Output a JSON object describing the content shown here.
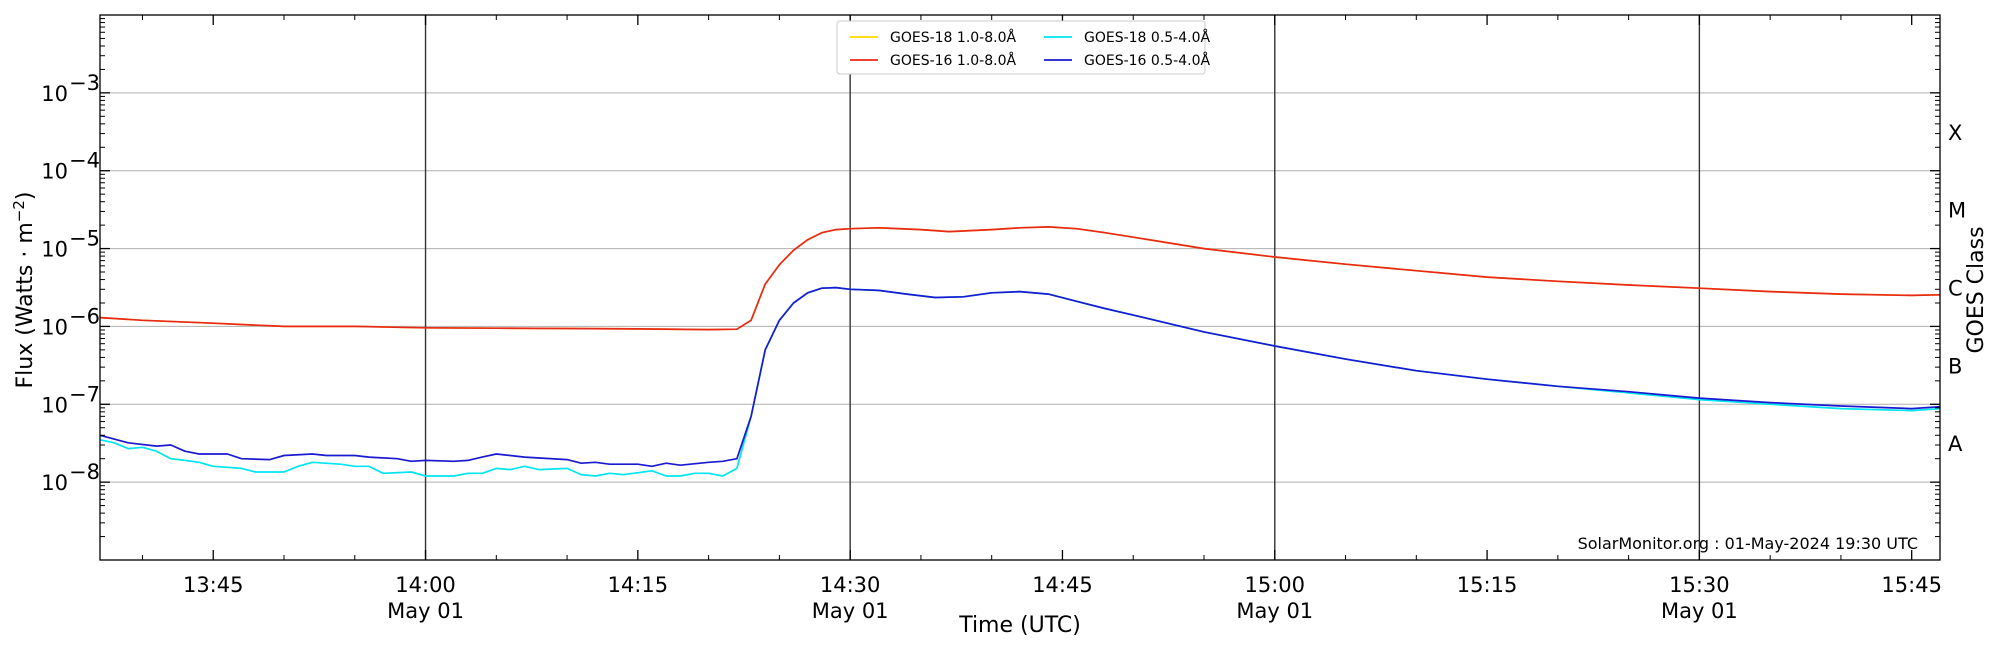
{
  "chart_data": {
    "type": "line",
    "xlabel": "Time (UTC)",
    "ylabel": "Flux (Watts · m",
    "ylabel_sup": "−2",
    "ylabel_close": ")",
    "y2label": "GOES Class",
    "yscale": "log",
    "xlim": [
      "13:37",
      "15:47"
    ],
    "ylim": [
      1e-09,
      0.01
    ],
    "grid": true,
    "legend_position": "top-center",
    "credit": "SolarMonitor.org : 01-May-2024 19:30 UTC",
    "x_ticks": [
      {
        "t": "13:45",
        "label": "13:45",
        "sub": ""
      },
      {
        "t": "14:00",
        "label": "14:00",
        "sub": "May 01"
      },
      {
        "t": "14:15",
        "label": "14:15",
        "sub": ""
      },
      {
        "t": "14:30",
        "label": "14:30",
        "sub": "May 01"
      },
      {
        "t": "14:45",
        "label": "14:45",
        "sub": ""
      },
      {
        "t": "15:00",
        "label": "15:00",
        "sub": "May 01"
      },
      {
        "t": "15:15",
        "label": "15:15",
        "sub": ""
      },
      {
        "t": "15:30",
        "label": "15:30",
        "sub": "May 01"
      },
      {
        "t": "15:45",
        "label": "15:45",
        "sub": ""
      }
    ],
    "vertical_lines": [
      "14:00",
      "14:30",
      "15:00",
      "15:30"
    ],
    "y_ticks": [
      {
        "exp": -8,
        "label": "10",
        "sup": "−8"
      },
      {
        "exp": -7,
        "label": "10",
        "sup": "−7"
      },
      {
        "exp": -6,
        "label": "10",
        "sup": "−6"
      },
      {
        "exp": -5,
        "label": "10",
        "sup": "−5"
      },
      {
        "exp": -4,
        "label": "10",
        "sup": "−4"
      },
      {
        "exp": -3,
        "label": "10",
        "sup": "−3"
      }
    ],
    "goes_classes": [
      {
        "label": "A",
        "exp": -7.5
      },
      {
        "label": "B",
        "exp": -6.5
      },
      {
        "label": "C",
        "exp": -5.5
      },
      {
        "label": "M",
        "exp": -4.5
      },
      {
        "label": "X",
        "exp": -3.5
      }
    ],
    "series": [
      {
        "name": "GOES-18 1.0-8.0Å",
        "color": "#ffd700",
        "points": [
          [
            "13:37",
            1.3e-06
          ],
          [
            "13:40",
            1.2e-06
          ],
          [
            "13:45",
            1.1e-06
          ],
          [
            "13:50",
            1e-06
          ],
          [
            "13:55",
            1e-06
          ],
          [
            "14:00",
            9.6e-07
          ],
          [
            "14:05",
            9.5e-07
          ],
          [
            "14:10",
            9.4e-07
          ],
          [
            "14:15",
            9.3e-07
          ],
          [
            "14:20",
            9.1e-07
          ],
          [
            "14:22",
            9.2e-07
          ],
          [
            "14:23",
            1.2e-06
          ],
          [
            "14:24",
            3.5e-06
          ],
          [
            "14:25",
            6.2e-06
          ],
          [
            "14:26",
            9.5e-06
          ],
          [
            "14:27",
            1.3e-05
          ],
          [
            "14:28",
            1.6e-05
          ],
          [
            "14:29",
            1.75e-05
          ],
          [
            "14:30",
            1.8e-05
          ],
          [
            "14:32",
            1.85e-05
          ],
          [
            "14:35",
            1.75e-05
          ],
          [
            "14:37",
            1.65e-05
          ],
          [
            "14:40",
            1.75e-05
          ],
          [
            "14:42",
            1.85e-05
          ],
          [
            "14:44",
            1.9e-05
          ],
          [
            "14:46",
            1.8e-05
          ],
          [
            "14:48",
            1.6e-05
          ],
          [
            "14:50",
            1.4e-05
          ],
          [
            "14:55",
            1e-05
          ],
          [
            "15:00",
            7.8e-06
          ],
          [
            "15:05",
            6.3e-06
          ],
          [
            "15:10",
            5.2e-06
          ],
          [
            "15:15",
            4.3e-06
          ],
          [
            "15:20",
            3.8e-06
          ],
          [
            "15:25",
            3.4e-06
          ],
          [
            "15:30",
            3.1e-06
          ],
          [
            "15:35",
            2.8e-06
          ],
          [
            "15:40",
            2.6e-06
          ],
          [
            "15:45",
            2.5e-06
          ],
          [
            "15:47",
            2.55e-06
          ]
        ]
      },
      {
        "name": "GOES-16 1.0-8.0Å",
        "color": "#e8281a",
        "points": [
          [
            "13:37",
            1.3e-06
          ],
          [
            "13:40",
            1.2e-06
          ],
          [
            "13:45",
            1.1e-06
          ],
          [
            "13:50",
            1e-06
          ],
          [
            "13:55",
            1e-06
          ],
          [
            "14:00",
            9.6e-07
          ],
          [
            "14:05",
            9.5e-07
          ],
          [
            "14:10",
            9.4e-07
          ],
          [
            "14:15",
            9.3e-07
          ],
          [
            "14:20",
            9.1e-07
          ],
          [
            "14:22",
            9.2e-07
          ],
          [
            "14:23",
            1.2e-06
          ],
          [
            "14:24",
            3.5e-06
          ],
          [
            "14:25",
            6.2e-06
          ],
          [
            "14:26",
            9.5e-06
          ],
          [
            "14:27",
            1.3e-05
          ],
          [
            "14:28",
            1.6e-05
          ],
          [
            "14:29",
            1.75e-05
          ],
          [
            "14:30",
            1.8e-05
          ],
          [
            "14:32",
            1.85e-05
          ],
          [
            "14:35",
            1.75e-05
          ],
          [
            "14:37",
            1.65e-05
          ],
          [
            "14:40",
            1.75e-05
          ],
          [
            "14:42",
            1.85e-05
          ],
          [
            "14:44",
            1.9e-05
          ],
          [
            "14:46",
            1.8e-05
          ],
          [
            "14:48",
            1.6e-05
          ],
          [
            "14:50",
            1.4e-05
          ],
          [
            "14:55",
            1e-05
          ],
          [
            "15:00",
            7.8e-06
          ],
          [
            "15:05",
            6.3e-06
          ],
          [
            "15:10",
            5.2e-06
          ],
          [
            "15:15",
            4.3e-06
          ],
          [
            "15:20",
            3.8e-06
          ],
          [
            "15:25",
            3.4e-06
          ],
          [
            "15:30",
            3.1e-06
          ],
          [
            "15:35",
            2.8e-06
          ],
          [
            "15:40",
            2.6e-06
          ],
          [
            "15:45",
            2.5e-06
          ],
          [
            "15:47",
            2.55e-06
          ]
        ]
      },
      {
        "name": "GOES-18 0.5-4.0Å",
        "color": "#00e5f0",
        "points": [
          [
            "13:37",
            3.5e-08
          ],
          [
            "13:38",
            3.2e-08
          ],
          [
            "13:39",
            2.7e-08
          ],
          [
            "13:40",
            2.8e-08
          ],
          [
            "13:41",
            2.5e-08
          ],
          [
            "13:42",
            2e-08
          ],
          [
            "13:43",
            1.9e-08
          ],
          [
            "13:44",
            1.8e-08
          ],
          [
            "13:45",
            1.6e-08
          ],
          [
            "13:47",
            1.5e-08
          ],
          [
            "13:48",
            1.35e-08
          ],
          [
            "13:50",
            1.35e-08
          ],
          [
            "13:51",
            1.6e-08
          ],
          [
            "13:52",
            1.8e-08
          ],
          [
            "13:54",
            1.7e-08
          ],
          [
            "13:55",
            1.6e-08
          ],
          [
            "13:56",
            1.6e-08
          ],
          [
            "13:57",
            1.3e-08
          ],
          [
            "13:59",
            1.35e-08
          ],
          [
            "14:00",
            1.2e-08
          ],
          [
            "14:02",
            1.2e-08
          ],
          [
            "14:03",
            1.3e-08
          ],
          [
            "14:04",
            1.3e-08
          ],
          [
            "14:05",
            1.5e-08
          ],
          [
            "14:06",
            1.45e-08
          ],
          [
            "14:07",
            1.6e-08
          ],
          [
            "14:08",
            1.45e-08
          ],
          [
            "14:10",
            1.5e-08
          ],
          [
            "14:11",
            1.25e-08
          ],
          [
            "14:12",
            1.2e-08
          ],
          [
            "14:13",
            1.3e-08
          ],
          [
            "14:14",
            1.25e-08
          ],
          [
            "14:16",
            1.4e-08
          ],
          [
            "14:17",
            1.2e-08
          ],
          [
            "14:18",
            1.2e-08
          ],
          [
            "14:19",
            1.3e-08
          ],
          [
            "14:20",
            1.3e-08
          ],
          [
            "14:21",
            1.2e-08
          ],
          [
            "14:22",
            1.5e-08
          ],
          [
            "14:23",
            7e-08
          ],
          [
            "14:24",
            5e-07
          ],
          [
            "14:25",
            1.2e-06
          ],
          [
            "14:26",
            2e-06
          ],
          [
            "14:27",
            2.7e-06
          ],
          [
            "14:28",
            3.1e-06
          ],
          [
            "14:29",
            3.15e-06
          ],
          [
            "14:30",
            3e-06
          ],
          [
            "14:32",
            2.9e-06
          ],
          [
            "14:34",
            2.6e-06
          ],
          [
            "14:36",
            2.35e-06
          ],
          [
            "14:38",
            2.4e-06
          ],
          [
            "14:40",
            2.7e-06
          ],
          [
            "14:42",
            2.8e-06
          ],
          [
            "14:44",
            2.6e-06
          ],
          [
            "14:46",
            2.1e-06
          ],
          [
            "14:48",
            1.7e-06
          ],
          [
            "14:50",
            1.4e-06
          ],
          [
            "14:55",
            8.5e-07
          ],
          [
            "15:00",
            5.6e-07
          ],
          [
            "15:05",
            3.8e-07
          ],
          [
            "15:10",
            2.7e-07
          ],
          [
            "15:15",
            2.1e-07
          ],
          [
            "15:20",
            1.7e-07
          ],
          [
            "15:25",
            1.4e-07
          ],
          [
            "15:30",
            1.15e-07
          ],
          [
            "15:35",
            1e-07
          ],
          [
            "15:40",
            8.8e-08
          ],
          [
            "15:45",
            8.3e-08
          ],
          [
            "15:47",
            8.8e-08
          ]
        ]
      },
      {
        "name": "GOES-16 0.5-4.0Å",
        "color": "#1a1ad0",
        "points": [
          [
            "13:37",
            4e-08
          ],
          [
            "13:39",
            3.2e-08
          ],
          [
            "13:41",
            2.9e-08
          ],
          [
            "13:42",
            3e-08
          ],
          [
            "13:43",
            2.5e-08
          ],
          [
            "13:44",
            2.3e-08
          ],
          [
            "13:46",
            2.3e-08
          ],
          [
            "13:47",
            2e-08
          ],
          [
            "13:49",
            1.95e-08
          ],
          [
            "13:50",
            2.2e-08
          ],
          [
            "13:52",
            2.3e-08
          ],
          [
            "13:53",
            2.2e-08
          ],
          [
            "13:55",
            2.2e-08
          ],
          [
            "13:56",
            2.1e-08
          ],
          [
            "13:58",
            2e-08
          ],
          [
            "13:59",
            1.85e-08
          ],
          [
            "14:00",
            1.9e-08
          ],
          [
            "14:02",
            1.85e-08
          ],
          [
            "14:03",
            1.9e-08
          ],
          [
            "14:04",
            2.1e-08
          ],
          [
            "14:05",
            2.3e-08
          ],
          [
            "14:07",
            2.1e-08
          ],
          [
            "14:10",
            1.95e-08
          ],
          [
            "14:11",
            1.75e-08
          ],
          [
            "14:12",
            1.8e-08
          ],
          [
            "14:13",
            1.7e-08
          ],
          [
            "14:15",
            1.7e-08
          ],
          [
            "14:16",
            1.6e-08
          ],
          [
            "14:17",
            1.75e-08
          ],
          [
            "14:18",
            1.65e-08
          ],
          [
            "14:20",
            1.8e-08
          ],
          [
            "14:21",
            1.85e-08
          ],
          [
            "14:22",
            2e-08
          ],
          [
            "14:23",
            7e-08
          ],
          [
            "14:24",
            5e-07
          ],
          [
            "14:25",
            1.2e-06
          ],
          [
            "14:26",
            2e-06
          ],
          [
            "14:27",
            2.7e-06
          ],
          [
            "14:28",
            3.1e-06
          ],
          [
            "14:29",
            3.15e-06
          ],
          [
            "14:30",
            3e-06
          ],
          [
            "14:32",
            2.9e-06
          ],
          [
            "14:34",
            2.6e-06
          ],
          [
            "14:36",
            2.35e-06
          ],
          [
            "14:38",
            2.4e-06
          ],
          [
            "14:40",
            2.7e-06
          ],
          [
            "14:42",
            2.8e-06
          ],
          [
            "14:44",
            2.6e-06
          ],
          [
            "14:46",
            2.1e-06
          ],
          [
            "14:48",
            1.7e-06
          ],
          [
            "14:50",
            1.4e-06
          ],
          [
            "14:55",
            8.5e-07
          ],
          [
            "15:00",
            5.6e-07
          ],
          [
            "15:05",
            3.8e-07
          ],
          [
            "15:10",
            2.7e-07
          ],
          [
            "15:15",
            2.1e-07
          ],
          [
            "15:20",
            1.7e-07
          ],
          [
            "15:25",
            1.45e-07
          ],
          [
            "15:30",
            1.2e-07
          ],
          [
            "15:35",
            1.05e-07
          ],
          [
            "15:40",
            9.5e-08
          ],
          [
            "15:45",
            8.8e-08
          ],
          [
            "15:47",
            9.3e-08
          ]
        ]
      }
    ]
  }
}
